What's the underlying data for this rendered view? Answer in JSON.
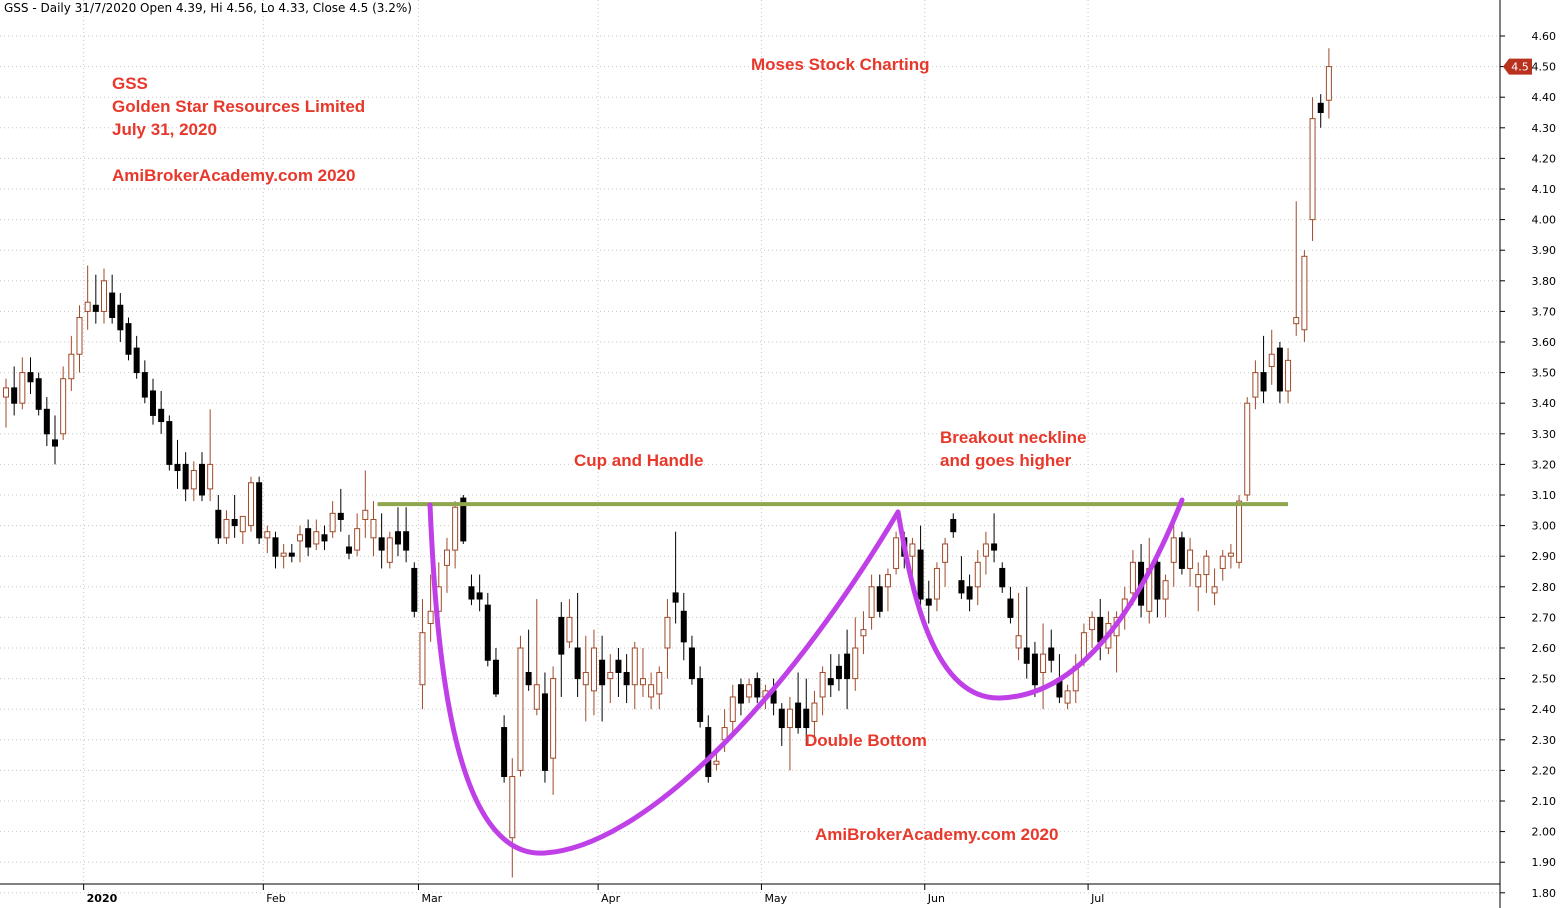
{
  "header": {
    "text": "GSS - Daily 31/7/2020 Open 4.39, Hi 4.56, Lo 4.33, Close 4.5 (3.2%)"
  },
  "annotations": {
    "ticker": "GSS",
    "company": "Golden Star Resources Limited",
    "date": "July 31, 2020",
    "site_top": "AmiBrokerAcademy.com 2020",
    "brand": "Moses Stock Charting",
    "cup_handle": "Cup and Handle",
    "breakout_line1": "Breakout neckline",
    "breakout_line2": "and goes higher",
    "double_bottom": "Double Bottom",
    "site_bottom": "AmiBrokerAcademy.com  2020"
  },
  "colors": {
    "up_candle": "#a04a2a",
    "down_candle": "#000000",
    "neckline": "#8fa64e",
    "pattern_curve": "#c040e8",
    "annotation_text": "#e8382b",
    "price_marker": "#b8321e",
    "grid": "#c8c8c8"
  },
  "chart_data": {
    "type": "candlestick",
    "ylim": [
      1.8,
      4.6
    ],
    "y_ticks": [
      "1.80",
      "1.90",
      "2.00",
      "2.10",
      "2.20",
      "2.30",
      "2.40",
      "2.50",
      "2.60",
      "2.70",
      "2.80",
      "2.90",
      "3.00",
      "3.10",
      "3.20",
      "3.30",
      "3.40",
      "3.50",
      "3.60",
      "3.70",
      "3.80",
      "3.90",
      "4.00",
      "4.10",
      "4.20",
      "4.30",
      "4.40",
      "4.50",
      "4.60"
    ],
    "x_labels": [
      {
        "label": "2020",
        "bar": 10
      },
      {
        "label": "Feb",
        "bar": 32
      },
      {
        "label": "Mar",
        "bar": 51
      },
      {
        "label": "Apr",
        "bar": 73
      },
      {
        "label": "May",
        "bar": 93
      },
      {
        "label": "Jun",
        "bar": 113
      },
      {
        "label": "Jul",
        "bar": 133
      }
    ],
    "last_price_label": "4.5",
    "last_price": 4.5,
    "neckline_price": 3.07,
    "grid": true,
    "series": [
      {
        "ohlc": [
          [
            3.42,
            3.48,
            3.32,
            3.45
          ],
          [
            3.45,
            3.52,
            3.36,
            3.4
          ],
          [
            3.4,
            3.55,
            3.38,
            3.5
          ],
          [
            3.5,
            3.55,
            3.43,
            3.47
          ],
          [
            3.48,
            3.5,
            3.36,
            3.38
          ],
          [
            3.38,
            3.42,
            3.26,
            3.3
          ],
          [
            3.28,
            3.36,
            3.2,
            3.26
          ],
          [
            3.3,
            3.52,
            3.28,
            3.48
          ],
          [
            3.48,
            3.62,
            3.44,
            3.56
          ],
          [
            3.56,
            3.72,
            3.5,
            3.68
          ],
          [
            3.7,
            3.85,
            3.64,
            3.73
          ],
          [
            3.72,
            3.82,
            3.66,
            3.7
          ],
          [
            3.7,
            3.84,
            3.66,
            3.8
          ],
          [
            3.76,
            3.82,
            3.66,
            3.68
          ],
          [
            3.72,
            3.76,
            3.6,
            3.64
          ],
          [
            3.66,
            3.68,
            3.54,
            3.56
          ],
          [
            3.58,
            3.62,
            3.48,
            3.5
          ],
          [
            3.5,
            3.54,
            3.4,
            3.42
          ],
          [
            3.44,
            3.48,
            3.33,
            3.36
          ],
          [
            3.38,
            3.44,
            3.3,
            3.34
          ],
          [
            3.34,
            3.36,
            3.18,
            3.2
          ],
          [
            3.2,
            3.28,
            3.12,
            3.18
          ],
          [
            3.2,
            3.24,
            3.08,
            3.12
          ],
          [
            3.12,
            3.21,
            3.08,
            3.18
          ],
          [
            3.2,
            3.24,
            3.08,
            3.1
          ],
          [
            3.12,
            3.38,
            3.08,
            3.2
          ],
          [
            3.05,
            3.1,
            2.94,
            2.96
          ],
          [
            2.96,
            3.05,
            2.94,
            3.02
          ],
          [
            3.02,
            3.1,
            2.96,
            3.0
          ],
          [
            2.98,
            3.03,
            2.94,
            3.03
          ],
          [
            3.0,
            3.16,
            2.98,
            3.14
          ],
          [
            3.14,
            3.16,
            2.94,
            2.96
          ],
          [
            2.96,
            3.0,
            2.91,
            2.98
          ],
          [
            2.96,
            2.98,
            2.86,
            2.9
          ],
          [
            2.9,
            2.94,
            2.86,
            2.91
          ],
          [
            2.91,
            2.94,
            2.88,
            2.9
          ],
          [
            2.95,
            3.0,
            2.88,
            2.97
          ],
          [
            2.99,
            3.02,
            2.9,
            2.93
          ],
          [
            2.94,
            3.02,
            2.92,
            2.98
          ],
          [
            2.97,
            3.0,
            2.92,
            2.95
          ],
          [
            2.98,
            3.08,
            2.96,
            3.04
          ],
          [
            3.04,
            3.12,
            2.98,
            3.02
          ],
          [
            2.93,
            2.97,
            2.89,
            2.91
          ],
          [
            2.92,
            3.04,
            2.9,
            2.99
          ],
          [
            3.02,
            3.18,
            2.96,
            3.05
          ],
          [
            2.96,
            3.08,
            2.9,
            3.02
          ],
          [
            2.96,
            3.04,
            2.86,
            2.92
          ],
          [
            2.88,
            2.98,
            2.86,
            2.96
          ],
          [
            2.98,
            3.06,
            2.9,
            2.94
          ],
          [
            2.98,
            3.06,
            2.88,
            2.92
          ],
          [
            2.86,
            2.88,
            2.7,
            2.72
          ],
          [
            2.48,
            2.76,
            2.4,
            2.65
          ],
          [
            2.68,
            2.84,
            2.62,
            2.72
          ],
          [
            2.72,
            2.88,
            2.7,
            2.8
          ],
          [
            2.87,
            2.96,
            2.78,
            2.92
          ],
          [
            2.92,
            3.08,
            2.86,
            3.06
          ],
          [
            3.09,
            3.1,
            2.94,
            2.95
          ],
          [
            2.8,
            2.84,
            2.74,
            2.76
          ],
          [
            2.78,
            2.84,
            2.72,
            2.76
          ],
          [
            2.74,
            2.78,
            2.54,
            2.56
          ],
          [
            2.56,
            2.6,
            2.44,
            2.45
          ],
          [
            2.34,
            2.38,
            2.16,
            2.18
          ],
          [
            1.98,
            2.24,
            1.85,
            2.18
          ],
          [
            2.2,
            2.64,
            2.18,
            2.6
          ],
          [
            2.52,
            2.66,
            2.46,
            2.48
          ],
          [
            2.4,
            2.76,
            2.38,
            2.48
          ],
          [
            2.45,
            2.52,
            2.16,
            2.2
          ],
          [
            2.24,
            2.54,
            2.12,
            2.5
          ],
          [
            2.7,
            2.75,
            2.44,
            2.58
          ],
          [
            2.62,
            2.76,
            2.6,
            2.7
          ],
          [
            2.6,
            2.78,
            2.44,
            2.5
          ],
          [
            2.48,
            2.64,
            2.36,
            2.52
          ],
          [
            2.46,
            2.66,
            2.38,
            2.6
          ],
          [
            2.56,
            2.64,
            2.36,
            2.48
          ],
          [
            2.5,
            2.58,
            2.42,
            2.52
          ],
          [
            2.56,
            2.6,
            2.44,
            2.52
          ],
          [
            2.52,
            2.58,
            2.42,
            2.48
          ],
          [
            2.48,
            2.62,
            2.4,
            2.6
          ],
          [
            2.48,
            2.6,
            2.44,
            2.5
          ],
          [
            2.44,
            2.52,
            2.4,
            2.48
          ],
          [
            2.45,
            2.54,
            2.4,
            2.52
          ],
          [
            2.6,
            2.76,
            2.5,
            2.7
          ],
          [
            2.78,
            2.98,
            2.68,
            2.75
          ],
          [
            2.72,
            2.78,
            2.56,
            2.62
          ],
          [
            2.6,
            2.64,
            2.48,
            2.5
          ],
          [
            2.5,
            2.54,
            2.34,
            2.36
          ],
          [
            2.34,
            2.38,
            2.16,
            2.18
          ],
          [
            2.22,
            2.26,
            2.2,
            2.23
          ],
          [
            2.3,
            2.4,
            2.26,
            2.34
          ],
          [
            2.36,
            2.48,
            2.32,
            2.44
          ],
          [
            2.48,
            2.5,
            2.38,
            2.42
          ],
          [
            2.44,
            2.5,
            2.42,
            2.48
          ],
          [
            2.5,
            2.52,
            2.42,
            2.44
          ],
          [
            2.44,
            2.48,
            2.4,
            2.46
          ],
          [
            2.46,
            2.5,
            2.38,
            2.42
          ],
          [
            2.4,
            2.42,
            2.28,
            2.34
          ],
          [
            2.34,
            2.44,
            2.2,
            2.4
          ],
          [
            2.42,
            2.52,
            2.32,
            2.34
          ],
          [
            2.4,
            2.5,
            2.28,
            2.34
          ],
          [
            2.36,
            2.46,
            2.3,
            2.42
          ],
          [
            2.44,
            2.54,
            2.38,
            2.52
          ],
          [
            2.5,
            2.58,
            2.44,
            2.48
          ],
          [
            2.54,
            2.58,
            2.46,
            2.5
          ],
          [
            2.58,
            2.66,
            2.4,
            2.5
          ],
          [
            2.5,
            2.7,
            2.46,
            2.6
          ],
          [
            2.64,
            2.72,
            2.58,
            2.66
          ],
          [
            2.7,
            2.84,
            2.66,
            2.8
          ],
          [
            2.8,
            2.84,
            2.7,
            2.72
          ],
          [
            2.8,
            2.86,
            2.72,
            2.84
          ],
          [
            2.86,
            2.98,
            2.84,
            2.96
          ],
          [
            2.96,
            2.98,
            2.86,
            2.9
          ],
          [
            2.9,
            2.96,
            2.8,
            2.94
          ],
          [
            2.92,
            3.0,
            2.74,
            2.76
          ],
          [
            2.76,
            2.82,
            2.68,
            2.74
          ],
          [
            2.76,
            2.88,
            2.72,
            2.86
          ],
          [
            2.88,
            2.96,
            2.8,
            2.94
          ],
          [
            3.02,
            3.04,
            2.96,
            2.98
          ],
          [
            2.82,
            2.9,
            2.76,
            2.78
          ],
          [
            2.8,
            2.84,
            2.72,
            2.76
          ],
          [
            2.8,
            2.92,
            2.74,
            2.88
          ],
          [
            2.9,
            2.98,
            2.84,
            2.94
          ],
          [
            2.94,
            3.04,
            2.88,
            2.92
          ],
          [
            2.86,
            2.88,
            2.78,
            2.8
          ],
          [
            2.76,
            2.8,
            2.68,
            2.7
          ],
          [
            2.6,
            2.78,
            2.56,
            2.64
          ],
          [
            2.6,
            2.8,
            2.5,
            2.55
          ],
          [
            2.58,
            2.62,
            2.44,
            2.48
          ],
          [
            2.52,
            2.68,
            2.4,
            2.58
          ],
          [
            2.6,
            2.66,
            2.52,
            2.56
          ],
          [
            2.5,
            2.58,
            2.42,
            2.44
          ],
          [
            2.42,
            2.48,
            2.4,
            2.46
          ],
          [
            2.46,
            2.58,
            2.42,
            2.54
          ],
          [
            2.56,
            2.68,
            2.54,
            2.65
          ],
          [
            2.66,
            2.72,
            2.6,
            2.7
          ],
          [
            2.7,
            2.76,
            2.56,
            2.62
          ],
          [
            2.6,
            2.72,
            2.58,
            2.68
          ],
          [
            2.64,
            2.72,
            2.52,
            2.7
          ],
          [
            2.72,
            2.8,
            2.66,
            2.76
          ],
          [
            2.78,
            2.92,
            2.74,
            2.88
          ],
          [
            2.88,
            2.94,
            2.7,
            2.74
          ],
          [
            2.72,
            2.96,
            2.68,
            2.86
          ],
          [
            2.88,
            2.92,
            2.7,
            2.76
          ],
          [
            2.76,
            2.84,
            2.7,
            2.82
          ],
          [
            2.88,
            3.02,
            2.8,
            2.96
          ],
          [
            2.96,
            2.98,
            2.84,
            2.86
          ],
          [
            2.86,
            2.96,
            2.8,
            2.92
          ],
          [
            2.8,
            2.88,
            2.72,
            2.84
          ],
          [
            2.84,
            2.92,
            2.78,
            2.9
          ],
          [
            2.78,
            2.86,
            2.74,
            2.8
          ],
          [
            2.86,
            2.92,
            2.82,
            2.9
          ],
          [
            2.9,
            2.94,
            2.86,
            2.91
          ],
          [
            2.88,
            3.1,
            2.86,
            3.08
          ],
          [
            3.1,
            3.42,
            3.08,
            3.4
          ],
          [
            3.42,
            3.54,
            3.38,
            3.5
          ],
          [
            3.5,
            3.62,
            3.4,
            3.44
          ],
          [
            3.52,
            3.64,
            3.46,
            3.56
          ],
          [
            3.58,
            3.6,
            3.4,
            3.44
          ],
          [
            3.44,
            3.58,
            3.4,
            3.54
          ],
          [
            3.66,
            4.06,
            3.62,
            3.68
          ],
          [
            3.64,
            3.9,
            3.6,
            3.88
          ],
          [
            4.0,
            4.4,
            3.93,
            4.33
          ],
          [
            4.38,
            4.41,
            4.3,
            4.35
          ],
          [
            4.39,
            4.56,
            4.33,
            4.5
          ]
        ]
      }
    ]
  }
}
